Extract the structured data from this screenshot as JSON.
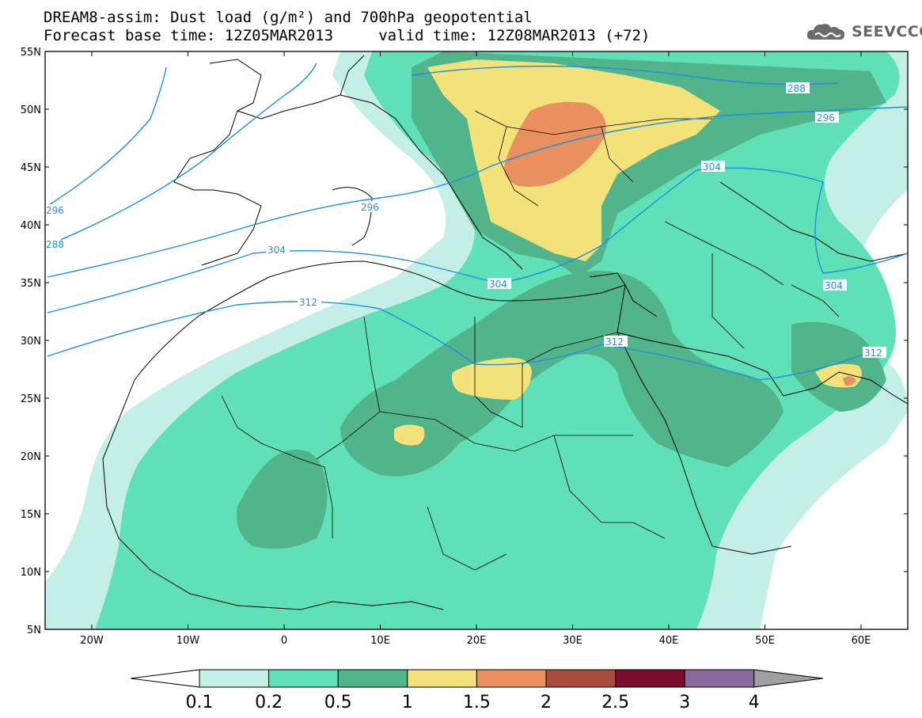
{
  "header": {
    "title_line1": "DREAM8-assim: Dust load (g/m²) and 700hPa geopotential",
    "title_line2": "Forecast base time: 12Z05MAR2013     valid time: 12Z08MAR2013 (+72)"
  },
  "logo": {
    "text": "SEEVCCC",
    "icon": "cloud-icon"
  },
  "map": {
    "lat_labels": [
      "55N",
      "50N",
      "45N",
      "40N",
      "35N",
      "30N",
      "25N",
      "20N",
      "15N",
      "10N",
      "5N"
    ],
    "lon_labels": [
      "20W",
      "10W",
      "0",
      "10E",
      "20E",
      "30E",
      "40E",
      "50E",
      "60E"
    ],
    "contour_labels": [
      "288",
      "296",
      "304",
      "312",
      "296",
      "304",
      "312",
      "312",
      "304",
      "288",
      "296",
      "304"
    ],
    "colors": {
      "ocean_land": "#ffffff",
      "coast": "#000000",
      "contour": "#1e90e0",
      "frame": "#000000"
    }
  },
  "legend": {
    "labels": [
      "0.1",
      "0.2",
      "0.5",
      "1",
      "1.5",
      "2",
      "2.5",
      "3",
      "4"
    ],
    "colors": [
      "#c4efe6",
      "#5fe0b6",
      "#52b48a",
      "#f3e27a",
      "#e8905e",
      "#a84c3c",
      "#7a0d30",
      "#8a6a9c",
      "#a0a0a0"
    ]
  }
}
